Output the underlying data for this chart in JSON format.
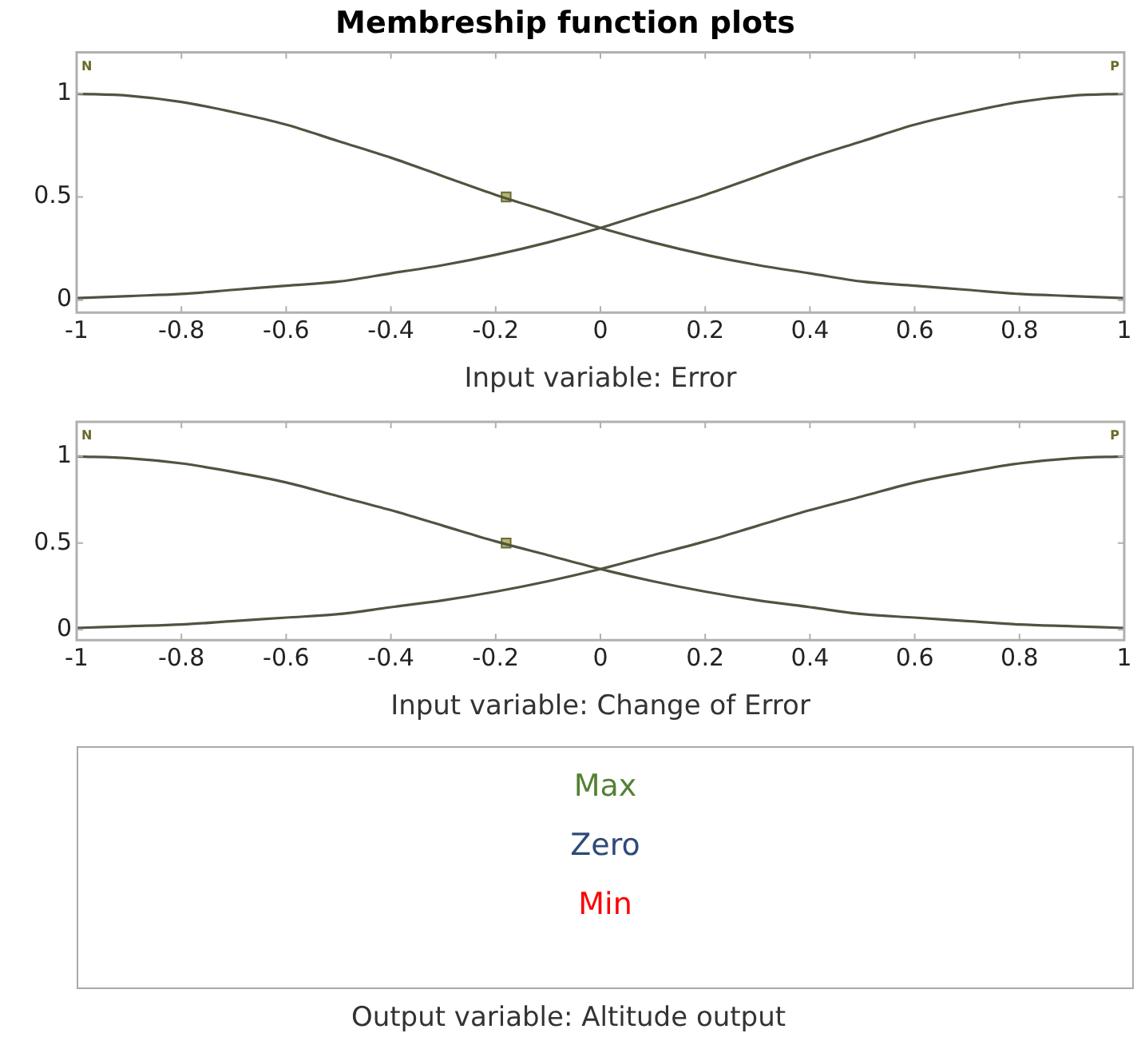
{
  "chart_data": [
    {
      "type": "line",
      "title": "Membreship function plots",
      "xlabel": "Input variable: Error",
      "x": [
        -1,
        -0.9,
        -0.8,
        -0.7,
        -0.6,
        -0.5,
        -0.4,
        -0.3,
        -0.2,
        -0.1,
        0,
        0.1,
        0.2,
        0.3,
        0.4,
        0.5,
        0.6,
        0.7,
        0.8,
        0.9,
        1
      ],
      "series": [
        {
          "name": "N",
          "color": "#4f5440",
          "values": [
            1,
            0.99,
            0.96,
            0.91,
            0.85,
            0.77,
            0.69,
            0.6,
            0.51,
            0.43,
            0.35,
            0.28,
            0.22,
            0.17,
            0.13,
            0.09,
            0.07,
            0.05,
            0.03,
            0.02,
            0.01
          ]
        },
        {
          "name": "P",
          "color": "#4f5440",
          "values": [
            0.01,
            0.02,
            0.03,
            0.05,
            0.07,
            0.09,
            0.13,
            0.17,
            0.22,
            0.28,
            0.35,
            0.43,
            0.51,
            0.6,
            0.69,
            0.77,
            0.85,
            0.91,
            0.96,
            0.99,
            1
          ]
        },
        {
          "type": "scatter",
          "color": "#b5b56e",
          "x": [
            -0.18
          ],
          "values": [
            0.5
          ],
          "marker": "square"
        }
      ],
      "xlim": [
        -1,
        1
      ],
      "xticks": [
        -1,
        -0.8,
        -0.6,
        -0.4,
        -0.2,
        0,
        0.2,
        0.4,
        0.6,
        0.8,
        1
      ],
      "ylim": [
        -0.06,
        1.2
      ],
      "yticks": [
        0,
        0.5,
        1
      ],
      "grid": false,
      "legend": false,
      "marker": "none",
      "line_style": "solid"
    },
    {
      "type": "line",
      "xlabel": "Input variable: Change of Error",
      "x": [
        -1,
        -0.9,
        -0.8,
        -0.7,
        -0.6,
        -0.5,
        -0.4,
        -0.3,
        -0.2,
        -0.1,
        0,
        0.1,
        0.2,
        0.3,
        0.4,
        0.5,
        0.6,
        0.7,
        0.8,
        0.9,
        1
      ],
      "series": [
        {
          "name": "N",
          "color": "#4f5440",
          "values": [
            1,
            0.99,
            0.96,
            0.91,
            0.85,
            0.77,
            0.69,
            0.6,
            0.51,
            0.43,
            0.35,
            0.28,
            0.22,
            0.17,
            0.13,
            0.09,
            0.07,
            0.05,
            0.03,
            0.02,
            0.01
          ]
        },
        {
          "name": "P",
          "color": "#4f5440",
          "values": [
            0.01,
            0.02,
            0.03,
            0.05,
            0.07,
            0.09,
            0.13,
            0.17,
            0.22,
            0.28,
            0.35,
            0.43,
            0.51,
            0.6,
            0.69,
            0.77,
            0.85,
            0.91,
            0.96,
            0.99,
            1
          ]
        },
        {
          "type": "scatter",
          "color": "#b5b56e",
          "x": [
            -0.18
          ],
          "values": [
            0.5
          ],
          "marker": "square"
        }
      ],
      "xlim": [
        -1,
        1
      ],
      "xticks": [
        -1,
        -0.8,
        -0.6,
        -0.4,
        -0.2,
        0,
        0.2,
        0.4,
        0.6,
        0.8,
        1
      ],
      "ylim": [
        -0.06,
        1.2
      ],
      "yticks": [
        0,
        0.5,
        1
      ],
      "grid": false,
      "legend": false,
      "marker": "none",
      "line_style": "solid"
    },
    {
      "type": "other",
      "categories": [
        "Max",
        "Zero",
        "Min"
      ],
      "colors": [
        "#538135",
        "#2f4a7a",
        "#ff0000"
      ],
      "xlabel": "Output variable: Altitude output"
    }
  ]
}
